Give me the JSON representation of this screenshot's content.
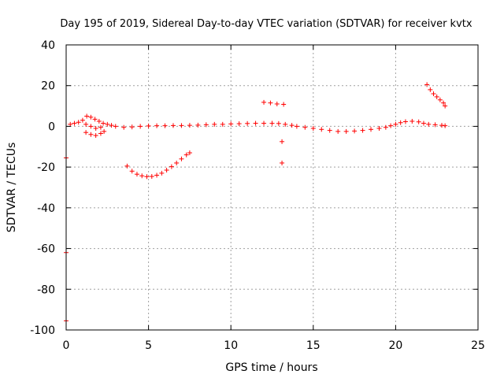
{
  "chart_data": {
    "type": "scatter",
    "title": "Day 195 of 2019, Sidereal Day-to-day VTEC variation (SDTVAR) for receiver kvtx",
    "xlabel": "GPS time / hours",
    "ylabel": "SDTVAR / TECUs",
    "xlim": [
      0,
      25
    ],
    "ylim": [
      -100,
      40
    ],
    "xticks": [
      "0",
      "5",
      "10",
      "15",
      "20",
      "25"
    ],
    "yticks": [
      "-100",
      "-80",
      "-60",
      "-40",
      "-20",
      "0",
      "20",
      "40"
    ],
    "grid": true,
    "marker": "+",
    "color": "#ff0000",
    "series": [
      {
        "points": [
          [
            0.25,
            1.0
          ],
          [
            0.5,
            1.5
          ],
          [
            0.75,
            2.0
          ],
          [
            1.0,
            3.0
          ],
          [
            1.25,
            5.0
          ],
          [
            1.5,
            4.5
          ],
          [
            1.75,
            3.5
          ],
          [
            2.0,
            2.5
          ],
          [
            2.25,
            1.5
          ],
          [
            2.5,
            1.0
          ],
          [
            1.2,
            -3.0
          ],
          [
            1.5,
            -4.0
          ],
          [
            1.8,
            -4.5
          ],
          [
            2.1,
            -3.5
          ],
          [
            2.3,
            -2.5
          ],
          [
            1.2,
            1.0
          ],
          [
            1.5,
            0.0
          ],
          [
            1.8,
            -1.0
          ],
          [
            2.1,
            -0.5
          ],
          [
            2.75,
            0.5
          ],
          [
            3.0,
            0.0
          ],
          [
            3.5,
            -0.5
          ],
          [
            4.0,
            -0.3
          ],
          [
            4.5,
            0.0
          ],
          [
            5.0,
            0.2
          ],
          [
            5.5,
            0.3
          ],
          [
            6.0,
            0.3
          ],
          [
            6.5,
            0.4
          ],
          [
            7.0,
            0.4
          ],
          [
            7.5,
            0.5
          ],
          [
            8.0,
            0.6
          ],
          [
            8.5,
            0.8
          ],
          [
            9.0,
            1.0
          ],
          [
            9.5,
            1.0
          ],
          [
            10.0,
            1.2
          ],
          [
            10.5,
            1.3
          ],
          [
            11.0,
            1.4
          ],
          [
            11.5,
            1.5
          ],
          [
            12.0,
            1.5
          ],
          [
            12.5,
            1.5
          ],
          [
            12.9,
            1.4
          ],
          [
            3.7,
            -19.5
          ],
          [
            4.0,
            -22.0
          ],
          [
            4.3,
            -23.5
          ],
          [
            4.6,
            -24.3
          ],
          [
            4.9,
            -24.7
          ],
          [
            5.2,
            -24.6
          ],
          [
            5.5,
            -24.0
          ],
          [
            5.8,
            -23.0
          ],
          [
            6.1,
            -21.5
          ],
          [
            6.4,
            -19.8
          ],
          [
            6.7,
            -18.0
          ],
          [
            7.0,
            -16.0
          ],
          [
            7.3,
            -14.0
          ],
          [
            7.5,
            -13.0
          ],
          [
            12.0,
            11.8
          ],
          [
            12.4,
            11.5
          ],
          [
            12.8,
            11.0
          ],
          [
            13.2,
            10.8
          ],
          [
            13.1,
            -7.5
          ],
          [
            13.1,
            -18.0
          ],
          [
            13.3,
            1.0
          ],
          [
            13.7,
            0.5
          ],
          [
            14.0,
            0.0
          ],
          [
            14.5,
            -0.5
          ],
          [
            15.0,
            -1.0
          ],
          [
            15.5,
            -1.5
          ],
          [
            16.0,
            -2.0
          ],
          [
            16.5,
            -2.5
          ],
          [
            17.0,
            -2.5
          ],
          [
            17.5,
            -2.3
          ],
          [
            18.0,
            -2.0
          ],
          [
            18.5,
            -1.5
          ],
          [
            19.0,
            -1.0
          ],
          [
            19.4,
            -0.5
          ],
          [
            19.7,
            0.3
          ],
          [
            20.0,
            1.0
          ],
          [
            20.3,
            1.8
          ],
          [
            20.6,
            2.3
          ],
          [
            21.0,
            2.5
          ],
          [
            21.4,
            2.2
          ],
          [
            21.7,
            1.5
          ],
          [
            22.0,
            1.0
          ],
          [
            22.4,
            0.8
          ],
          [
            22.8,
            0.5
          ],
          [
            23.0,
            0.3
          ],
          [
            21.9,
            20.5
          ],
          [
            22.1,
            18.0
          ],
          [
            22.3,
            16.0
          ],
          [
            22.5,
            14.5
          ],
          [
            22.7,
            13.0
          ],
          [
            22.9,
            11.5
          ],
          [
            23.0,
            10.0
          ],
          [
            0.0,
            -15.5
          ],
          [
            0.0,
            -62.0
          ],
          [
            0.0,
            -95.5
          ]
        ]
      }
    ]
  }
}
